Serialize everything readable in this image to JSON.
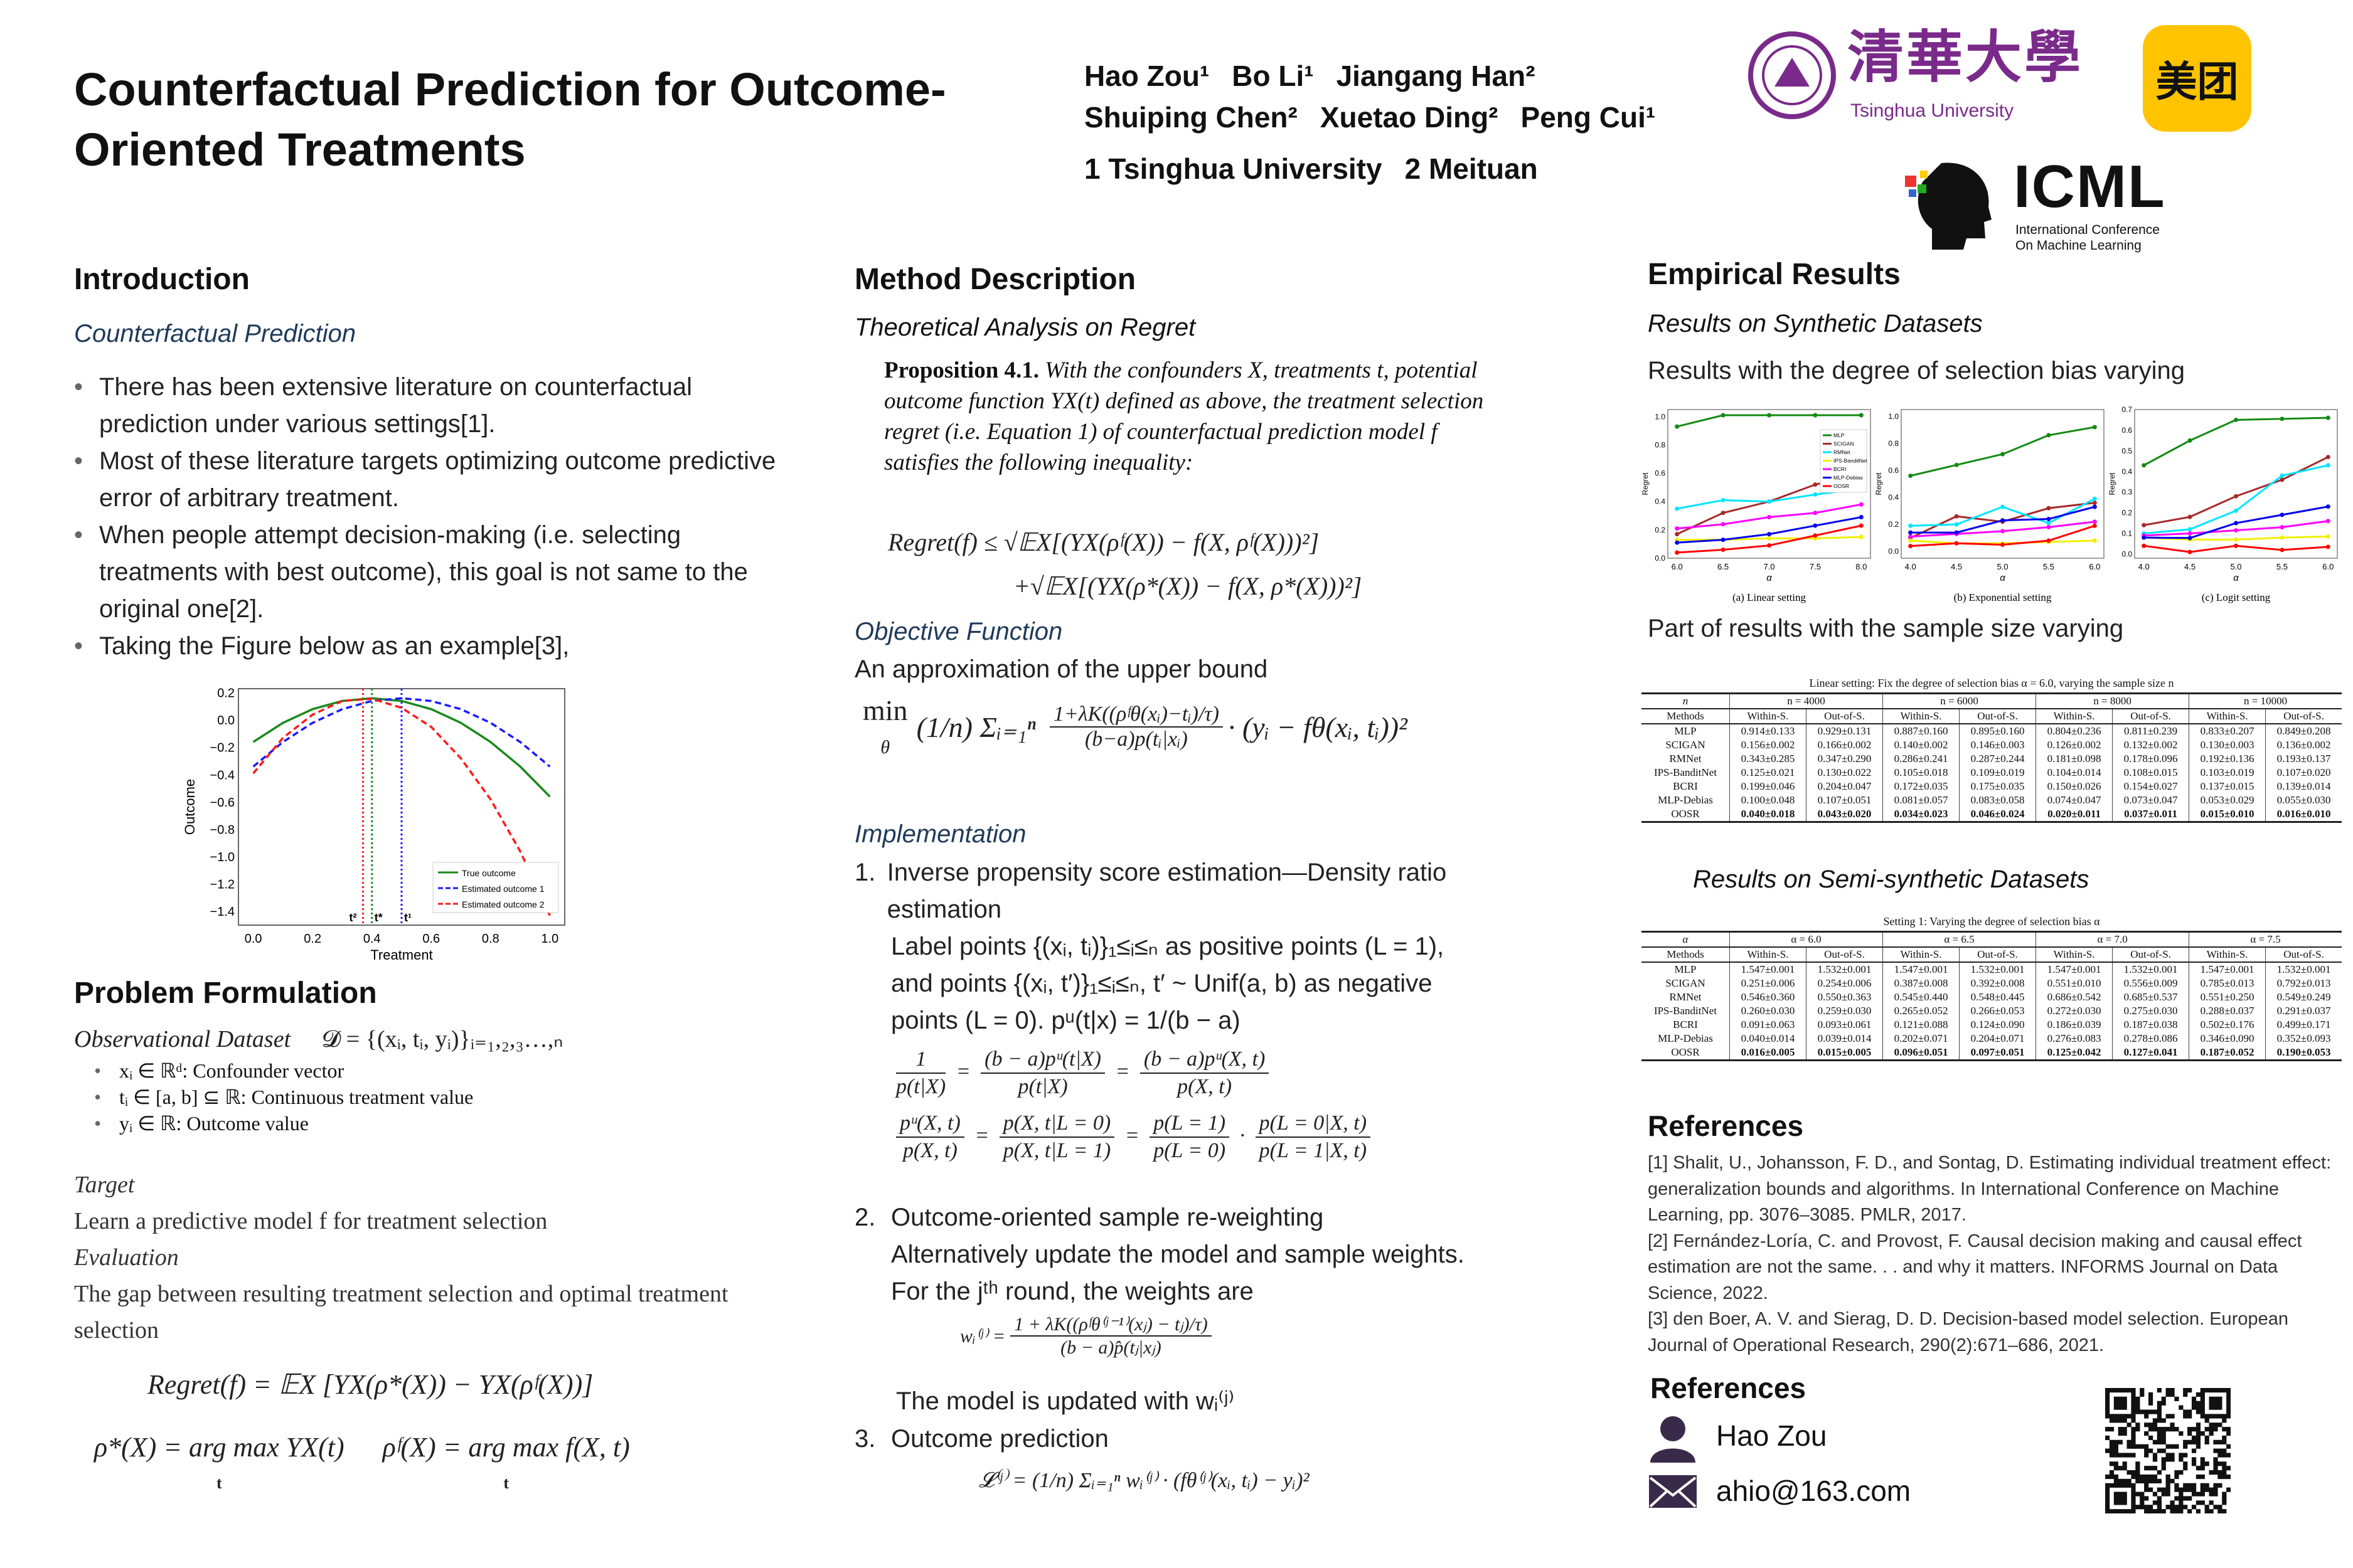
{
  "header": {
    "title_line1": "Counterfactual Prediction for Outcome-",
    "title_line2": "Oriented Treatments",
    "authors_line1": [
      "Hao Zou¹",
      "Bo Li¹",
      "Jiangang Han²"
    ],
    "authors_line2": [
      "Shuiping Chen²",
      "Xuetao Ding²",
      "Peng Cui¹"
    ],
    "affiliations": [
      "1 Tsinghua University",
      "2 Meituan"
    ],
    "logos": {
      "tsinghua_cn": "清華大學",
      "tsinghua_en": "Tsinghua University",
      "meituan": "美团",
      "icml": "ICML",
      "icml_sub1": "International Conference",
      "icml_sub2": "On Machine Learning"
    }
  },
  "intro": {
    "heading": "Introduction",
    "subheading": "Counterfactual Prediction",
    "bullets": [
      "There has been extensive literature on counterfactual prediction under various settings[1].",
      "Most of these literature targets optimizing outcome predictive error of arbitrary treatment.",
      "When people attempt decision-making (i.e. selecting treatments with best outcome), this goal is not same to the original one[2].",
      "Taking the Figure below as an example[3],"
    ]
  },
  "chart_data": [
    {
      "type": "line",
      "xlabel": "Treatment",
      "ylabel": "Outcome",
      "xlim": [
        -0.05,
        1.05
      ],
      "ylim": [
        -1.5,
        0.23
      ],
      "xticks": [
        "0.0",
        "0.2",
        "0.4",
        "0.6",
        "0.8",
        "1.0"
      ],
      "yticks": [
        "0.2",
        "0.0",
        "−0.2",
        "−0.4",
        "−0.6",
        "−0.8",
        "−1.0",
        "−1.2",
        "−1.4"
      ],
      "x": [
        0,
        0.1,
        0.2,
        0.3,
        0.4,
        0.5,
        0.6,
        0.7,
        0.8,
        0.9,
        1.0
      ],
      "series": [
        {
          "name": "True outcome",
          "color": "#1a8a1a",
          "dash": "",
          "values": [
            -0.16,
            -0.02,
            0.08,
            0.14,
            0.16,
            0.14,
            0.08,
            -0.02,
            -0.16,
            -0.34,
            -0.56
          ]
        },
        {
          "name": "Estimated outcome 1",
          "color": "#1a1aff",
          "dash": "10,6",
          "values": [
            -0.34,
            -0.16,
            -0.02,
            0.08,
            0.14,
            0.16,
            0.14,
            0.08,
            -0.02,
            -0.16,
            -0.34
          ]
        },
        {
          "name": "Estimated outcome 2",
          "color": "#ff1a1a",
          "dash": "10,6",
          "values": [
            -0.39,
            -0.13,
            0.04,
            0.14,
            0.156,
            0.09,
            -0.05,
            -0.28,
            -0.58,
            -0.96,
            -1.43
          ]
        }
      ],
      "vlines": [
        {
          "x": 0.37,
          "color": "#ff1a1a",
          "label": "t²"
        },
        {
          "x": 0.4,
          "color": "#1a8a1a",
          "label": "t*"
        },
        {
          "x": 0.5,
          "color": "#1a1aff",
          "label": "t¹"
        }
      ],
      "legend": "bottom-right"
    },
    {
      "type": "line",
      "caption": "(a) Linear setting",
      "xlabel": "α",
      "ylabel": "Regret",
      "ylim": [
        0,
        1.05
      ],
      "yticks": [
        0,
        0.2,
        0.4,
        0.6,
        0.8,
        1.0
      ],
      "x": [
        6.0,
        6.5,
        7.0,
        7.5,
        8.0
      ],
      "legend": "top-right",
      "series": [
        {
          "name": "MLP",
          "color": "#138a13",
          "values": [
            0.93,
            1.01,
            1.01,
            1.01,
            1.01
          ]
        },
        {
          "name": "SCIGAN",
          "color": "#a52a2a",
          "values": [
            0.17,
            0.32,
            0.4,
            0.52,
            0.6
          ]
        },
        {
          "name": "RMNet",
          "color": "#00e5ff",
          "values": [
            0.35,
            0.41,
            0.4,
            0.45,
            0.49
          ]
        },
        {
          "name": "IPS-BanditNet",
          "color": "#f0f000",
          "values": [
            0.13,
            0.13,
            0.14,
            0.14,
            0.15
          ]
        },
        {
          "name": "BCRI",
          "color": "#ff00ff",
          "values": [
            0.21,
            0.24,
            0.29,
            0.32,
            0.38
          ]
        },
        {
          "name": "MLP-Debias",
          "color": "#0000ee",
          "values": [
            0.11,
            0.13,
            0.17,
            0.23,
            0.29
          ]
        },
        {
          "name": "OOSR",
          "color": "#ff0000",
          "values": [
            0.04,
            0.06,
            0.09,
            0.16,
            0.23
          ]
        }
      ]
    },
    {
      "type": "line",
      "caption": "(b) Exponential setting",
      "xlabel": "α",
      "ylabel": "Regret",
      "ylim": [
        -0.05,
        1.05
      ],
      "yticks": [
        0,
        0.2,
        0.4,
        0.6,
        0.8,
        1.0
      ],
      "x": [
        4.0,
        4.5,
        5.0,
        5.5,
        6.0
      ],
      "series": [
        {
          "name": "MLP",
          "color": "#138a13",
          "values": [
            0.56,
            0.64,
            0.72,
            0.86,
            0.92
          ]
        },
        {
          "name": "SCIGAN",
          "color": "#a52a2a",
          "values": [
            0.1,
            0.26,
            0.22,
            0.32,
            0.36
          ]
        },
        {
          "name": "RMNet",
          "color": "#00e5ff",
          "values": [
            0.19,
            0.2,
            0.33,
            0.21,
            0.39
          ]
        },
        {
          "name": "IPS-BanditNet",
          "color": "#f0f000",
          "values": [
            0.08,
            0.06,
            0.06,
            0.07,
            0.08
          ]
        },
        {
          "name": "BCRI",
          "color": "#ff00ff",
          "values": [
            0.11,
            0.13,
            0.15,
            0.18,
            0.22
          ]
        },
        {
          "name": "MLP-Debias",
          "color": "#0000ee",
          "values": [
            0.14,
            0.14,
            0.23,
            0.24,
            0.33
          ]
        },
        {
          "name": "OOSR",
          "color": "#ff0000",
          "values": [
            0.04,
            0.06,
            0.05,
            0.08,
            0.19
          ]
        }
      ]
    },
    {
      "type": "line",
      "caption": "(c) Logit setting",
      "xlabel": "α",
      "ylabel": "Regret",
      "ylim": [
        -0.02,
        0.7
      ],
      "yticks": [
        0,
        0.1,
        0.2,
        0.3,
        0.4,
        0.5,
        0.6,
        0.7
      ],
      "x": [
        4.0,
        4.5,
        5.0,
        5.5,
        6.0
      ],
      "series": [
        {
          "name": "MLP",
          "color": "#138a13",
          "values": [
            0.43,
            0.55,
            0.65,
            0.655,
            0.66
          ]
        },
        {
          "name": "SCIGAN",
          "color": "#a52a2a",
          "values": [
            0.14,
            0.18,
            0.28,
            0.36,
            0.47
          ]
        },
        {
          "name": "RMNet",
          "color": "#00e5ff",
          "values": [
            0.1,
            0.12,
            0.21,
            0.38,
            0.43
          ]
        },
        {
          "name": "IPS-BanditNet",
          "color": "#f0f000",
          "values": [
            0.08,
            0.07,
            0.07,
            0.08,
            0.085
          ]
        },
        {
          "name": "BCRI",
          "color": "#ff00ff",
          "values": [
            0.09,
            0.1,
            0.115,
            0.13,
            0.16
          ]
        },
        {
          "name": "MLP-Debias",
          "color": "#0000ee",
          "values": [
            0.08,
            0.078,
            0.15,
            0.19,
            0.23
          ]
        },
        {
          "name": "OOSR",
          "color": "#ff0000",
          "values": [
            0.04,
            0.01,
            0.04,
            0.02,
            0.035
          ]
        }
      ]
    }
  ],
  "problem": {
    "heading": "Problem Formulation",
    "obs_label": "Observational Dataset",
    "obs_eq": "𝓓 = {(xᵢ, tᵢ, yᵢ)}ᵢ₌₁,₂,₃…,ₙ",
    "vars": [
      "xᵢ ∈ ℝᵈ: Confounder vector",
      "tᵢ ∈ [a, b] ⊆ ℝ: Continuous treatment value",
      "yᵢ ∈ ℝ: Outcome value"
    ],
    "target_label": "Target",
    "target_text": "Learn a predictive model f  for treatment selection",
    "eval_label": "Evaluation",
    "eval_text": "The gap between resulting treatment selection and optimal treatment selection",
    "regret_eq": "Regret(f) = 𝔼X [YX(ρ*(X)) − YX(ρᶠ(X))]",
    "rho_eq1": "ρ*(X) = arg max YX(t)",
    "rho_eq2": "ρᶠ(X) = arg max f(X, t)",
    "argmax_sub": "t"
  },
  "method": {
    "heading": "Method Description",
    "theory": "Theoretical Analysis on Regret",
    "prop_label": "Proposition 4.1.",
    "prop_text": "With the confounders X, treatments t, potential outcome function YX(t) defined as above, the treatment selection regret (i.e.  Equation 1) of counterfactual prediction model f satisfies the following inequality:",
    "bound1": "Regret(f) ≤ √𝔼X[(YX(ρᶠ(X)) − f(X, ρᶠ(X)))²]",
    "bound2": "+√𝔼X[(YX(ρ*(X)) − f(X, ρ*(X)))²]",
    "objective": "Objective Function",
    "approx": "An approximation of the upper bound",
    "obj_eq_left": "min",
    "obj_eq_sub": "θ",
    "obj_eq_frac_num": "1+λK((ρᶠθ(xᵢ)−tᵢ)/τ)",
    "obj_eq_frac_den": "(b−a)p(tᵢ|xᵢ)",
    "obj_eq_right": "· (yᵢ − fθ(xᵢ, tᵢ))²",
    "obj_eq_sum": "(1/n) Σᵢ₌₁ⁿ",
    "impl": "Implementation",
    "step1": "Inverse propensity score estimation—Density ratio estimation",
    "step1_a": "Label points {(xᵢ, tᵢ)}₁≤ᵢ≤ₙ as positive points (L = 1),",
    "step1_b": "and points {(xᵢ, t′)}₁≤ᵢ≤ₙ, t′ ~ Unif(a, b) as negative",
    "step1_c": "points (L = 0). pᵘ(t|x) = 1/(b − a)",
    "eq_a": [
      "1",
      "p(t|X)",
      "(b − a)pᵘ(t|X)",
      "p(t|X)",
      "(b − a)pᵘ(X, t)",
      "p(X, t)"
    ],
    "eq_b": [
      "pᵘ(X, t)",
      "p(X, t)",
      "p(X, t|L = 0)",
      "p(X, t|L = 1)",
      "p(L = 1)",
      "p(L = 0)",
      "p(L = 0|X, t)",
      "p(L = 1|X, t)"
    ],
    "step2": "Outcome-oriented sample re-weighting",
    "step2_a": "Alternatively update the model and sample weights.",
    "step2_b": "For the jᵗʰ round, the weights are",
    "w_eq_left": "wᵢ⁽ʲ⁾ =",
    "w_eq_num": "1 + λK((ρᶠθ⁽ʲ⁻¹⁾(xⱼ) − tⱼ)/τ)",
    "w_eq_den": "(b − a)p̂(tⱼ|xⱼ)",
    "step2_c": "The model is updated with wᵢ⁽ʲ⁾",
    "step3": "Outcome prediction",
    "l_eq": "𝓛⁽ʲ⁾ = (1/n) Σᵢ₌₁ⁿ wᵢ⁽ʲ⁾ · (fθ⁽ʲ⁾(xᵢ, tᵢ) − yᵢ)²"
  },
  "results": {
    "heading": "Empirical Results",
    "synthetic": "Results on Synthetic Datasets",
    "bias_vary": "Results with the degree of selection bias varying",
    "sample_vary": "Part of results with the sample size varying",
    "semi": "Results on Semi-synthetic Datasets",
    "table1": {
      "caption": "Linear setting: Fix the degree of selection bias α = 6.0, varying the sample size n",
      "group_label": "n",
      "groups": [
        "n = 4000",
        "n = 6000",
        "n = 8000",
        "n = 10000"
      ],
      "sub": [
        "Within-S.",
        "Out-of-S."
      ],
      "methods_label": "Methods",
      "rows": [
        [
          "MLP",
          "0.914±0.133",
          "0.929±0.131",
          "0.887±0.160",
          "0.895±0.160",
          "0.804±0.236",
          "0.811±0.239",
          "0.833±0.207",
          "0.849±0.208"
        ],
        [
          "SCIGAN",
          "0.156±0.002",
          "0.166±0.002",
          "0.140±0.002",
          "0.146±0.003",
          "0.126±0.002",
          "0.132±0.002",
          "0.130±0.003",
          "0.136±0.002"
        ],
        [
          "RMNet",
          "0.343±0.285",
          "0.347±0.290",
          "0.286±0.241",
          "0.287±0.244",
          "0.181±0.098",
          "0.178±0.096",
          "0.192±0.136",
          "0.193±0.137"
        ],
        [
          "IPS-BanditNet",
          "0.125±0.021",
          "0.130±0.022",
          "0.105±0.018",
          "0.109±0.019",
          "0.104±0.014",
          "0.108±0.015",
          "0.103±0.019",
          "0.107±0.020"
        ],
        [
          "BCRI",
          "0.199±0.046",
          "0.204±0.047",
          "0.172±0.035",
          "0.175±0.035",
          "0.150±0.026",
          "0.154±0.027",
          "0.137±0.015",
          "0.139±0.014"
        ],
        [
          "MLP-Debias",
          "0.100±0.048",
          "0.107±0.051",
          "0.081±0.057",
          "0.083±0.058",
          "0.074±0.047",
          "0.073±0.047",
          "0.053±0.029",
          "0.055±0.030"
        ],
        [
          "OOSR",
          "0.040±0.018",
          "0.043±0.020",
          "0.034±0.023",
          "0.046±0.024",
          "0.020±0.011",
          "0.037±0.011",
          "0.015±0.010",
          "0.016±0.010"
        ]
      ]
    },
    "table2": {
      "caption": "Setting 1: Varying the degree of selection bias α",
      "group_label": "α",
      "groups": [
        "α = 6.0",
        "α = 6.5",
        "α = 7.0",
        "α = 7.5"
      ],
      "sub": [
        "Within-S.",
        "Out-of-S."
      ],
      "methods_label": "Methods",
      "rows": [
        [
          "MLP",
          "1.547±0.001",
          "1.532±0.001",
          "1.547±0.001",
          "1.532±0.001",
          "1.547±0.001",
          "1.532±0.001",
          "1.547±0.001",
          "1.532±0.001"
        ],
        [
          "SCIGAN",
          "0.251±0.006",
          "0.254±0.006",
          "0.387±0.008",
          "0.392±0.008",
          "0.551±0.010",
          "0.556±0.009",
          "0.785±0.013",
          "0.792±0.013"
        ],
        [
          "RMNet",
          "0.546±0.360",
          "0.550±0.363",
          "0.545±0.440",
          "0.548±0.445",
          "0.686±0.542",
          "0.685±0.537",
          "0.551±0.250",
          "0.549±0.249"
        ],
        [
          "IPS-BanditNet",
          "0.260±0.030",
          "0.259±0.030",
          "0.265±0.052",
          "0.266±0.053",
          "0.272±0.030",
          "0.275±0.030",
          "0.288±0.037",
          "0.291±0.037"
        ],
        [
          "BCRI",
          "0.091±0.063",
          "0.093±0.061",
          "0.121±0.088",
          "0.124±0.090",
          "0.186±0.039",
          "0.187±0.038",
          "0.502±0.176",
          "0.499±0.171"
        ],
        [
          "MLP-Debias",
          "0.040±0.014",
          "0.039±0.014",
          "0.202±0.071",
          "0.204±0.071",
          "0.276±0.083",
          "0.278±0.086",
          "0.346±0.090",
          "0.352±0.093"
        ],
        [
          "OOSR",
          "0.016±0.005",
          "0.015±0.005",
          "0.096±0.051",
          "0.097±0.051",
          "0.125±0.042",
          "0.127±0.041",
          "0.187±0.052",
          "0.190±0.053"
        ]
      ]
    }
  },
  "references": {
    "heading": "References",
    "items": [
      "[1] Shalit, U., Johansson, F. D., and Sontag, D. Estimating individual treatment effect: generalization bounds and algorithms. In International Conference on Machine Learning, pp. 3076–3085. PMLR, 2017.",
      "[2] Fernández-Loría, C. and Provost, F. Causal decision making and causal effect estimation are not the same. . . and why it matters. INFORMS Journal on Data Science, 2022.",
      "[3] den Boer, A. V. and Sierag, D. D. Decision-based model selection. European Journal of Operational Research, 290(2):671–686, 2021."
    ]
  },
  "contact": {
    "heading": "References",
    "name": "Hao Zou",
    "email": "ahio@163.com"
  }
}
